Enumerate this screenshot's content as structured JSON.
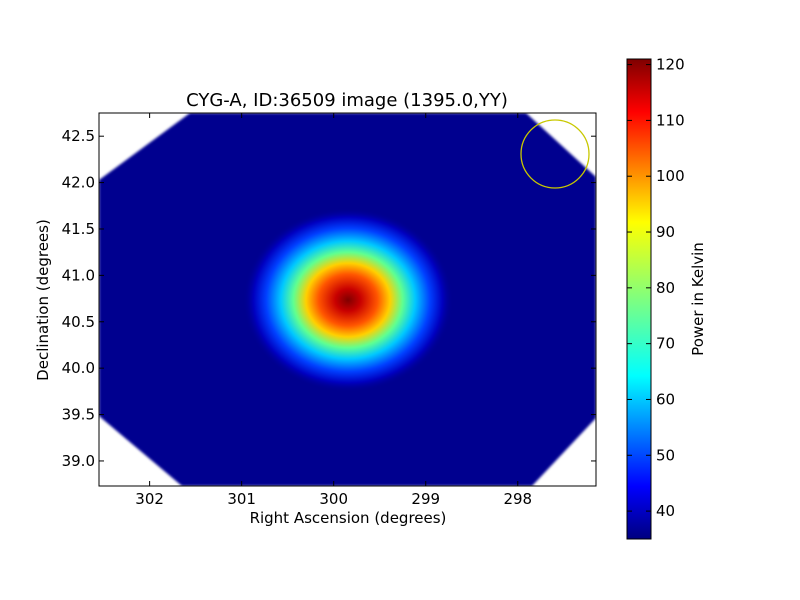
{
  "chart_data": {
    "type": "heatmap",
    "title": "CYG-A, ID:36509 image (1395.0,YY)",
    "xlabel": "Right Ascension (degrees)",
    "ylabel": "Declination (degrees)",
    "xlim": [
      302.55,
      297.15
    ],
    "ylim": [
      38.73,
      42.75
    ],
    "x_ticks": [
      302,
      301,
      300,
      299,
      298
    ],
    "y_ticks": [
      39.0,
      39.5,
      40.0,
      40.5,
      41.0,
      41.5,
      42.0,
      42.5
    ],
    "x_tick_labels": [
      "302",
      "301",
      "300",
      "299",
      "298"
    ],
    "y_tick_labels": [
      "39.0",
      "39.5",
      "40.0",
      "40.5",
      "41.0",
      "41.5",
      "42.0",
      "42.5"
    ],
    "source_peak": {
      "ra": 299.85,
      "dec": 40.73,
      "value": 120
    },
    "background_level": 35,
    "colormap": "jet",
    "beam_circle": {
      "ra": 297.65,
      "dec": 42.29,
      "color": "#c8c800"
    },
    "colorbar": {
      "label": "Power in Kelvin",
      "range": [
        35,
        121
      ],
      "ticks": [
        40,
        50,
        60,
        70,
        80,
        90,
        100,
        110,
        120
      ],
      "tick_labels": [
        "40",
        "50",
        "60",
        "70",
        "80",
        "90",
        "100",
        "110",
        "120"
      ]
    },
    "grid": false
  }
}
